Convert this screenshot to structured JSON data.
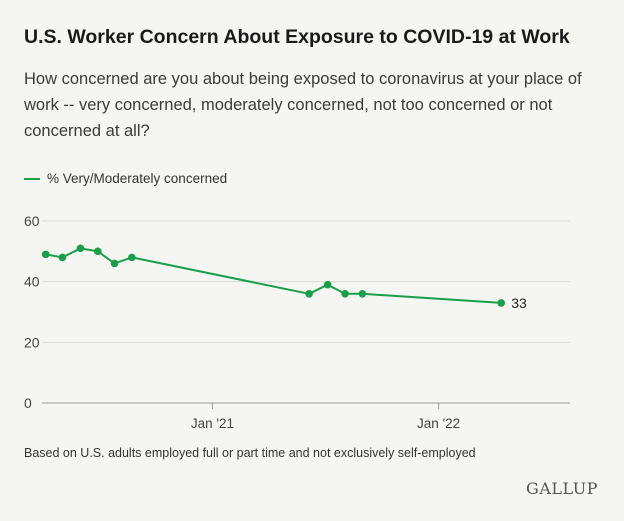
{
  "title": "U.S. Worker Concern About Exposure to COVID-19 at Work",
  "subtitle": "How concerned are you about being exposed to coronavirus at your place of work -- very concerned, moderately concerned, not too concerned or not concerned at all?",
  "footnote": "Based on U.S. adults employed full or part time and not exclusively self-employed",
  "brand": "GALLUP",
  "colors": {
    "series": "#1b9e4b",
    "grid": "#d9dbd4",
    "axis": "#999999",
    "background": "#f5f6f1"
  },
  "chart_data": {
    "type": "line",
    "title": "U.S. Worker Concern About Exposure to COVID-19 at Work",
    "xlabel": "",
    "ylabel": "",
    "ylim": [
      0,
      60
    ],
    "yticks": [
      0,
      20,
      40,
      60
    ],
    "xlim": [
      "2020-04-01",
      "2022-08-01"
    ],
    "xticks": [
      {
        "date": "2021-01-01",
        "label": "Jan '21"
      },
      {
        "date": "2022-01-01",
        "label": "Jan '22"
      }
    ],
    "grid": true,
    "legend": "top-left",
    "series": [
      {
        "name": "% Very/Moderately concerned",
        "color": "#1b9e4b",
        "points": [
          {
            "x": "2020-04-07",
            "y": 49
          },
          {
            "x": "2020-05-04",
            "y": 48
          },
          {
            "x": "2020-06-02",
            "y": 51
          },
          {
            "x": "2020-06-30",
            "y": 50
          },
          {
            "x": "2020-07-27",
            "y": 46
          },
          {
            "x": "2020-08-24",
            "y": 48
          },
          {
            "x": "2021-06-06",
            "y": 36
          },
          {
            "x": "2021-07-06",
            "y": 39
          },
          {
            "x": "2021-08-03",
            "y": 36
          },
          {
            "x": "2021-08-31",
            "y": 36
          },
          {
            "x": "2022-04-12",
            "y": 33
          }
        ],
        "end_label": "33"
      }
    ]
  }
}
